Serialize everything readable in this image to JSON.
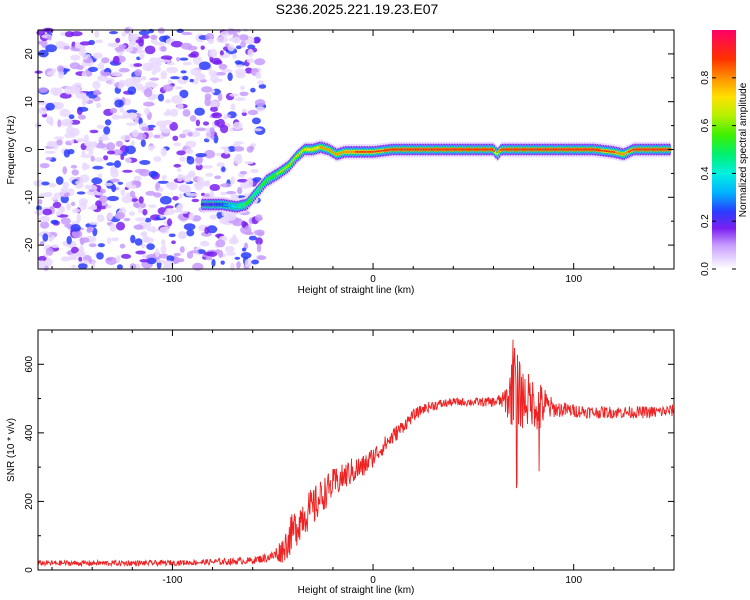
{
  "figure_title": "S236.2025.221.19.23.E07",
  "chart_data": [
    {
      "type": "heatmap",
      "xlabel": "Height of straight line (km)",
      "ylabel": "Frequency (Hz)",
      "xlim": [
        -167,
        150
      ],
      "ylim": [
        -25,
        25
      ],
      "xticks": [
        -100,
        0,
        100
      ],
      "xtick_labels": [
        "-100",
        "0",
        "100"
      ],
      "yticks": [
        -20,
        -10,
        0,
        10,
        20
      ],
      "ytick_labels": [
        "-20",
        "-10",
        "0",
        "10",
        "20"
      ],
      "noise_region_x": [
        -167,
        -55
      ],
      "ridge": {
        "x": [
          -85,
          -75,
          -68,
          -63,
          -58,
          -53,
          -47,
          -42,
          -38,
          -34,
          -30,
          -26,
          -22,
          -18,
          -14,
          -10,
          -5,
          0,
          10,
          20,
          40,
          60,
          62,
          64,
          70,
          75,
          80,
          100,
          110,
          120,
          125,
          130,
          140,
          148
        ],
        "freq": [
          -11.5,
          -11.5,
          -12,
          -11.5,
          -9,
          -6.5,
          -5,
          -3.5,
          -1.5,
          0,
          0,
          0.5,
          0,
          -1,
          -0.5,
          -0.5,
          -0.5,
          -0.5,
          0,
          0,
          0,
          0,
          -1,
          0,
          0,
          0,
          0,
          0,
          0,
          -0.5,
          -1,
          0,
          0,
          0
        ],
        "amplitude": [
          0.25,
          0.3,
          0.45,
          0.6,
          0.55,
          0.6,
          0.65,
          0.7,
          0.72,
          0.75,
          0.78,
          0.8,
          0.82,
          0.82,
          0.85,
          0.87,
          0.9,
          0.93,
          0.95,
          0.97,
          0.98,
          0.98,
          0.7,
          0.95,
          0.96,
          0.97,
          0.98,
          0.98,
          0.97,
          0.9,
          0.8,
          0.95,
          0.98,
          0.98
        ]
      }
    },
    {
      "type": "colorbar",
      "label": "Normalized spectral amplitude",
      "range": [
        0,
        1
      ],
      "ticks": [
        0,
        0.2,
        0.4,
        0.6,
        0.8
      ],
      "tick_labels": [
        "0.0",
        "0.2",
        "0.4",
        "0.6",
        "0.8"
      ]
    },
    {
      "type": "line",
      "color": "#ee2222",
      "xlabel": "Height of straight line (km)",
      "ylabel": "SNR (10 * v/v)",
      "xlim": [
        -167,
        150
      ],
      "ylim": [
        0,
        700
      ],
      "xticks": [
        -100,
        0,
        100
      ],
      "xtick_labels": [
        "-100",
        "0",
        "100"
      ],
      "yticks": [
        0,
        200,
        400,
        600
      ],
      "ytick_labels": [
        "0",
        "200",
        "400",
        "600"
      ],
      "series": [
        {
          "name": "SNR",
          "x": [
            -167,
            -150,
            -130,
            -110,
            -90,
            -70,
            -60,
            -50,
            -45,
            -40,
            -35,
            -30,
            -25,
            -20,
            -15,
            -10,
            -5,
            0,
            5,
            10,
            15,
            20,
            25,
            30,
            40,
            50,
            60,
            65,
            68,
            70,
            71,
            72,
            75,
            80,
            83,
            85,
            90,
            100,
            110,
            120,
            130,
            140,
            150
          ],
          "values": [
            20,
            20,
            20,
            20,
            22,
            25,
            28,
            40,
            60,
            110,
            160,
            180,
            220,
            250,
            270,
            290,
            300,
            330,
            360,
            390,
            420,
            450,
            470,
            480,
            490,
            490,
            490,
            495,
            500,
            560,
            640,
            520,
            500,
            490,
            470,
            480,
            470,
            465,
            460,
            460,
            460,
            460,
            465
          ],
          "noise": [
            8,
            8,
            8,
            8,
            8,
            10,
            10,
            15,
            40,
            60,
            60,
            60,
            50,
            45,
            40,
            40,
            35,
            30,
            25,
            25,
            20,
            18,
            15,
            15,
            12,
            12,
            15,
            25,
            80,
            140,
            140,
            110,
            90,
            70,
            80,
            60,
            25,
            20,
            18,
            18,
            18,
            18,
            18
          ]
        }
      ]
    }
  ]
}
